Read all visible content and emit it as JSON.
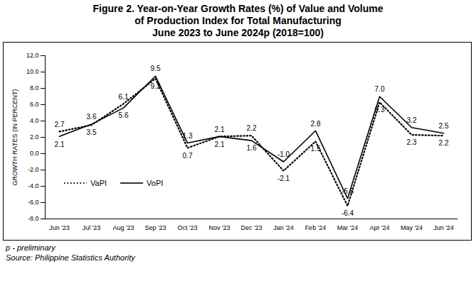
{
  "chart_data": {
    "type": "line",
    "title": [
      "Figure 2. Year-on-Year Growth Rates (%) of Value and Volume",
      "of Production Index for Total Manufacturing",
      "June 2023 to June 2024p (2018=100)"
    ],
    "y_label": "GROWTH RATES (IN PERCENT)",
    "notes": [
      "p - preliminary",
      "Source: Philippine Statistics Authority"
    ],
    "categories": [
      "Jun '23",
      "Jul '23",
      "Aug '23",
      "Sep '23",
      "Oct '23",
      "Nov '23",
      "Dec '23",
      "Jan '24",
      "Feb '24",
      "Mar '24",
      "Apr '24",
      "May '24",
      "Jun '24"
    ],
    "series": [
      {
        "name": "VaPI",
        "color": "#000000",
        "line_style": "dotted",
        "values": [
          2.7,
          3.5,
          6.1,
          9.2,
          0.7,
          2.1,
          2.2,
          -2.1,
          1.5,
          -6.4,
          6.3,
          2.3,
          2.2
        ],
        "value_labels": [
          "2.7",
          "3.5",
          "6.1",
          "9.2",
          "0.7",
          "2.1",
          "2.2",
          "-2.1",
          "1.5",
          "-6.4",
          "6.3",
          "2.3",
          "2.2"
        ]
      },
      {
        "name": "VoPI",
        "color": "#000000",
        "line_style": "solid",
        "values": [
          2.1,
          3.6,
          5.6,
          9.5,
          1.3,
          2.1,
          1.6,
          -1.0,
          2.8,
          -5.5,
          7.0,
          3.2,
          2.5
        ],
        "value_labels": [
          "2.1",
          "3.6",
          "5.6",
          "9.5",
          "1.3",
          "2.1",
          "1.6",
          "-1.0",
          "2.8",
          "-5.5",
          "7.0",
          "3.2",
          "2.5"
        ]
      }
    ],
    "ylim": [
      -8,
      12
    ],
    "yticks": [
      {
        "value": -8,
        "label": "-8.0"
      },
      {
        "value": -6,
        "label": "-6.0"
      },
      {
        "value": -4,
        "label": "-4.0"
      },
      {
        "value": -2,
        "label": "-2.0"
      },
      {
        "value": 0,
        "label": "0.0"
      },
      {
        "value": 2,
        "label": "2.0"
      },
      {
        "value": 4,
        "label": "4.0"
      },
      {
        "value": 6,
        "label": "6.0"
      },
      {
        "value": 8,
        "label": "8.0"
      },
      {
        "value": 10,
        "label": "10.0"
      },
      {
        "value": 12,
        "label": "12.0"
      }
    ],
    "grid": false,
    "legend": "lower left",
    "data_labels": true
  }
}
